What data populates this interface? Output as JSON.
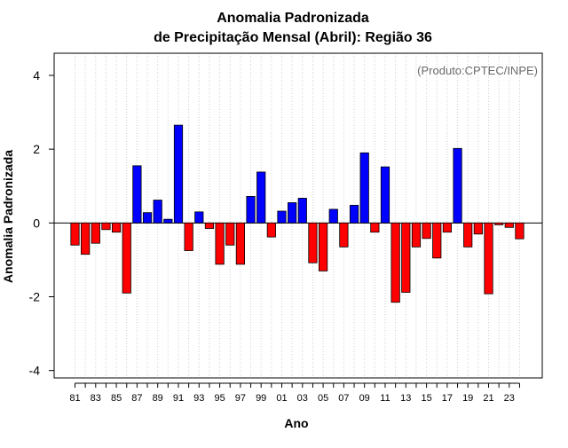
{
  "chart_data": {
    "type": "bar",
    "title_line1": "Anomalia Padronizada",
    "title_line2": "de Precipitação Mensal (Abril): Região 36",
    "xlabel": "Ano",
    "ylabel": "Anomalia Padronizada",
    "annotation": "(Produto:CPTEC/INPE)",
    "ylim": [
      -4.2,
      4.6
    ],
    "yticks": [
      -4,
      -2,
      0,
      2,
      4
    ],
    "y_tick_labels": [
      "-4",
      "-2",
      "0",
      "2",
      "4"
    ],
    "grid": "vertical dotted",
    "categories": [
      "81",
      "82",
      "83",
      "84",
      "85",
      "86",
      "87",
      "88",
      "89",
      "90",
      "91",
      "92",
      "93",
      "94",
      "95",
      "96",
      "97",
      "98",
      "99",
      "00",
      "01",
      "02",
      "03",
      "04",
      "05",
      "06",
      "07",
      "08",
      "09",
      "10",
      "11",
      "12",
      "13",
      "14",
      "15",
      "16",
      "17",
      "18",
      "19",
      "20",
      "21",
      "22",
      "23",
      "24"
    ],
    "x_tick_labels": [
      "81",
      "83",
      "85",
      "87",
      "89",
      "91",
      "93",
      "95",
      "97",
      "99",
      "01",
      "03",
      "05",
      "07",
      "09",
      "11",
      "13",
      "15",
      "17",
      "19",
      "21",
      "23"
    ],
    "values": [
      -0.6,
      -0.85,
      -0.55,
      -0.18,
      -0.25,
      -1.9,
      1.55,
      0.28,
      0.62,
      0.1,
      2.65,
      -0.75,
      0.3,
      -0.15,
      -1.12,
      -0.6,
      -1.12,
      0.72,
      1.38,
      -0.38,
      0.32,
      0.55,
      0.67,
      -1.08,
      -1.3,
      0.37,
      -0.65,
      0.48,
      1.9,
      -0.25,
      1.52,
      -2.15,
      -1.88,
      -0.65,
      -0.42,
      -0.95,
      -0.25,
      2.02,
      -0.65,
      -0.3,
      -1.92,
      -0.05,
      -0.12,
      -0.43
    ],
    "colors": {
      "positive": "#0000ff",
      "negative": "#ff0000",
      "outline": "#000000",
      "grid": "#cfcfcf"
    }
  }
}
